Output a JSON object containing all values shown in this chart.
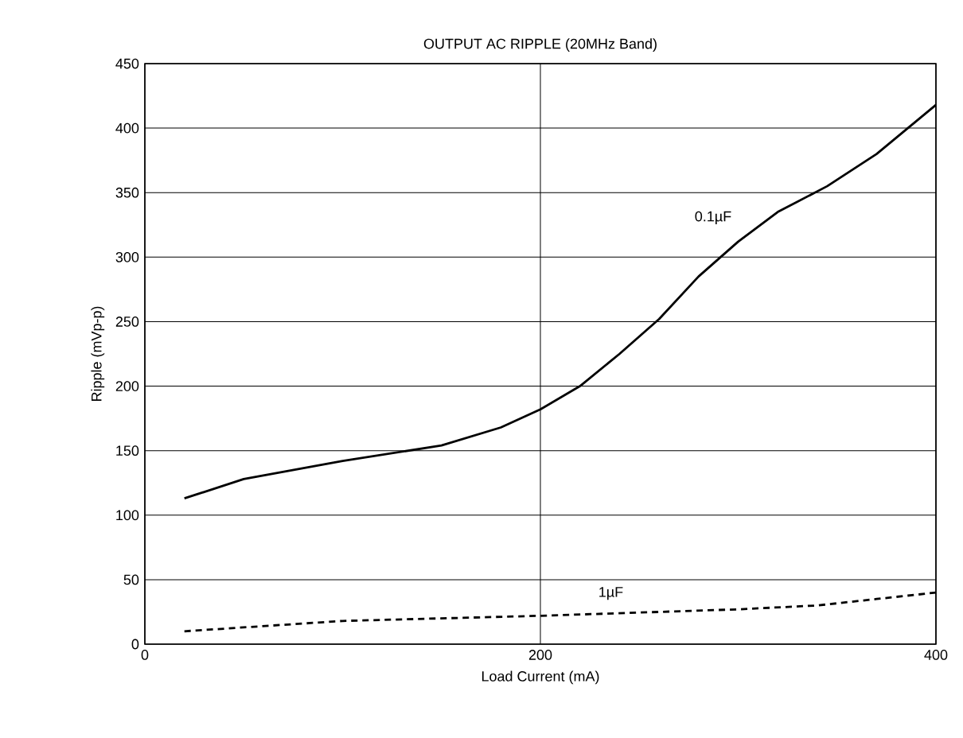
{
  "chart_data": {
    "type": "line",
    "title": "OUTPUT AC RIPPLE (20MHz Band)",
    "xlabel": "Load Current (mA)",
    "ylabel": "Ripple (mVp-p)",
    "xlim": [
      0,
      400
    ],
    "xticks": [
      0,
      200,
      400
    ],
    "ylim": [
      0,
      450
    ],
    "yticks": [
      0,
      50,
      100,
      150,
      200,
      250,
      300,
      350,
      400,
      450
    ],
    "grid": true,
    "series": [
      {
        "name": "0.1µF",
        "color": "#000000",
        "line_style": "solid",
        "x": [
          20,
          50,
          100,
          150,
          180,
          200,
          220,
          240,
          260,
          280,
          300,
          320,
          345,
          370,
          400
        ],
        "values": [
          113,
          128,
          142,
          154,
          168,
          182,
          200,
          225,
          252,
          285,
          312,
          335,
          355,
          380,
          418
        ]
      },
      {
        "name": "1µF",
        "color": "#000000",
        "line_style": "dashed",
        "x": [
          20,
          100,
          200,
          300,
          340,
          370,
          400
        ],
        "values": [
          10,
          18,
          22,
          27,
          30,
          35,
          40
        ]
      }
    ]
  }
}
